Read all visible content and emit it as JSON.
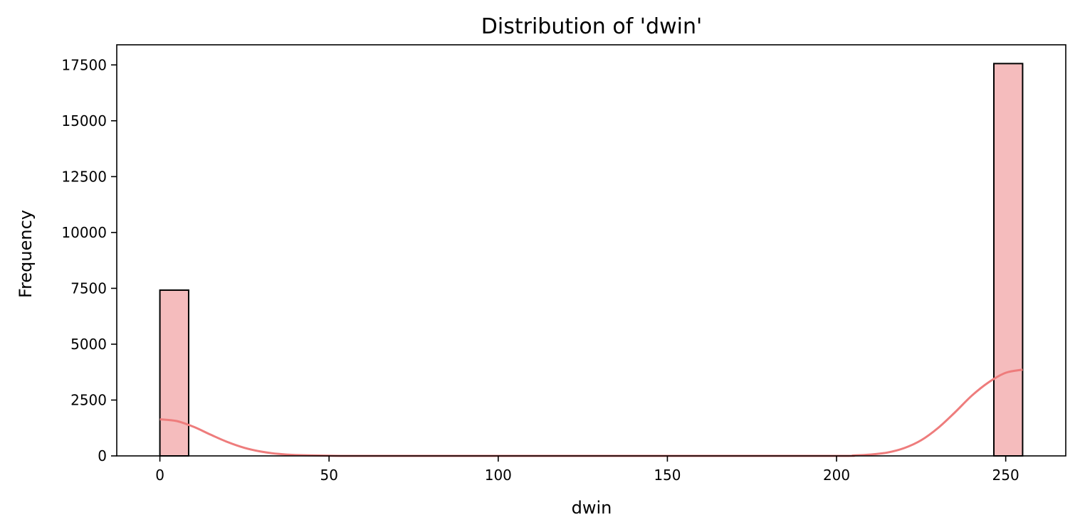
{
  "chart_data": {
    "type": "bar",
    "title": "Distribution of 'dwin'",
    "xlabel": "dwin",
    "ylabel": "Frequency",
    "xlim": [
      -12.75,
      267.75
    ],
    "ylim": [
      0,
      18400
    ],
    "x_ticks": [
      0,
      50,
      100,
      150,
      200,
      250
    ],
    "y_ticks": [
      0,
      2500,
      5000,
      7500,
      10000,
      12500,
      15000,
      17500
    ],
    "bin_width": 8.5,
    "bins": [
      {
        "start": 0,
        "end": 8.5,
        "count": 7420
      },
      {
        "start": 246.5,
        "end": 255,
        "count": 17560
      }
    ],
    "kde": {
      "x": [
        0,
        5,
        10,
        15,
        20,
        25,
        30,
        35,
        40,
        50,
        60,
        100,
        150,
        200,
        205,
        210,
        215,
        220,
        225,
        230,
        235,
        240,
        245,
        250,
        255
      ],
      "y": [
        1640,
        1560,
        1300,
        950,
        620,
        360,
        190,
        90,
        40,
        8,
        0,
        0,
        0,
        0,
        20,
        60,
        150,
        350,
        700,
        1250,
        1950,
        2700,
        3300,
        3720,
        3860
      ]
    },
    "colors": {
      "bar_fill": "#f5bcbd",
      "bar_edge": "#000000",
      "kde_line": "#ee7c7c"
    },
    "grid": false
  }
}
